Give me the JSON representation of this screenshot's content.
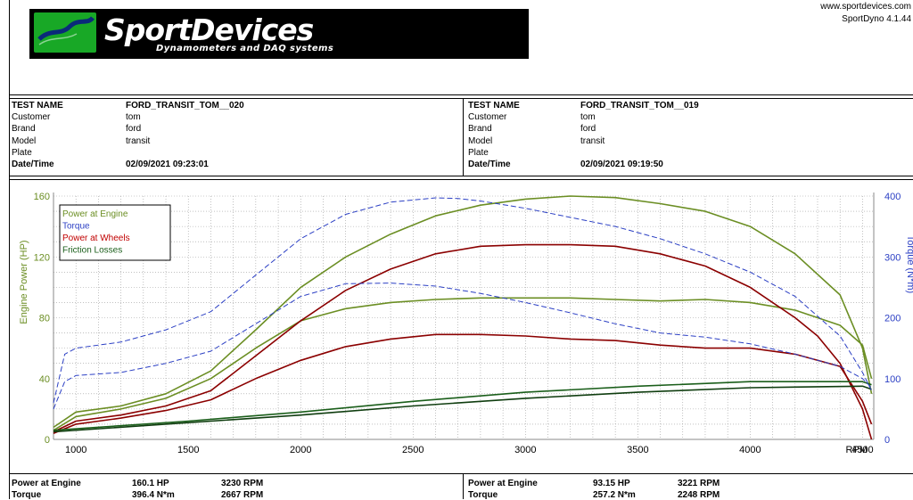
{
  "header": {
    "logo_title": "SportDevices",
    "logo_subtitle": "Dynamometers and DAQ systems",
    "website": "www.sportdevices.com",
    "version": "SportDyno 4.1.44"
  },
  "tests": [
    {
      "test_name_label": "TEST NAME",
      "test_name": "FORD_TRANSIT_TOM__020",
      "customer_label": "Customer",
      "customer": "tom",
      "brand_label": "Brand",
      "brand": "ford",
      "model_label": "Model",
      "model": "transit",
      "plate_label": "Plate",
      "plate": "",
      "datetime_label": "Date/Time",
      "datetime": "02/09/2021 09:23:01"
    },
    {
      "test_name_label": "TEST NAME",
      "test_name": "FORD_TRANSIT_TOM__019",
      "customer_label": "Customer",
      "customer": "tom",
      "brand_label": "Brand",
      "brand": "ford",
      "model_label": "Model",
      "model": "transit",
      "plate_label": "Plate",
      "plate": "",
      "datetime_label": "Date/Time",
      "datetime": "02/09/2021 09:19:50"
    }
  ],
  "results": [
    {
      "power_label": "Power at Engine",
      "power": "160.1 HP",
      "power_rpm": "3230 RPM",
      "torque_label": "Torque",
      "torque": "396.4 N*m",
      "torque_rpm": "2667 RPM"
    },
    {
      "power_label": "Power at Engine",
      "power": "93.15 HP",
      "power_rpm": "3221 RPM",
      "torque_label": "Torque",
      "torque": "257.2 N*m",
      "torque_rpm": "2248 RPM"
    }
  ],
  "chart_data": {
    "type": "line",
    "xlabel": "RPM",
    "ylabel_left": "Engine Power (HP)",
    "ylabel_right": "Torque (N*m)",
    "xlim": [
      900,
      4550
    ],
    "ylim_left": [
      0,
      160
    ],
    "ylim_right": [
      0,
      400
    ],
    "x_ticks": [
      "1000",
      "1500",
      "2000",
      "2500",
      "3000",
      "3500",
      "4000",
      "4500"
    ],
    "y_left_ticks": [
      "0",
      "40",
      "80",
      "120",
      "160"
    ],
    "y_right_ticks": [
      "0",
      "100",
      "200",
      "300",
      "400"
    ],
    "grid": true,
    "legend": {
      "placement": "top-left",
      "entries": [
        {
          "name": "Power at Engine",
          "color": "#6b8e23"
        },
        {
          "name": "Torque",
          "color": "#2b3fc4"
        },
        {
          "name": "Power at Wheels",
          "color": "#c00000"
        },
        {
          "name": "Friction Losses",
          "color": "#1a5e1a"
        }
      ]
    },
    "series": [
      {
        "name": "Power at Engine",
        "test": "FORD_TRANSIT_TOM__020",
        "axis": "left",
        "color": "#6b8e23",
        "style": "solid",
        "x": [
          900,
          1000,
          1200,
          1400,
          1600,
          1800,
          2000,
          2200,
          2400,
          2600,
          2800,
          3000,
          3200,
          3400,
          3600,
          3800,
          4000,
          4200,
          4400,
          4500,
          4540
        ],
        "y": [
          8,
          18,
          22,
          30,
          45,
          72,
          100,
          120,
          135,
          147,
          154,
          158,
          160,
          159,
          155,
          150,
          140,
          122,
          95,
          60,
          30
        ]
      },
      {
        "name": "Power at Engine",
        "test": "FORD_TRANSIT_TOM__019",
        "axis": "left",
        "color": "#6b8e23",
        "style": "solid",
        "x": [
          900,
          1000,
          1200,
          1400,
          1600,
          1800,
          2000,
          2200,
          2400,
          2600,
          2800,
          3000,
          3200,
          3400,
          3600,
          3800,
          4000,
          4200,
          4400,
          4500,
          4540
        ],
        "y": [
          6,
          15,
          20,
          27,
          40,
          60,
          78,
          86,
          90,
          92,
          93,
          93,
          93,
          92,
          91,
          92,
          90,
          85,
          75,
          62,
          40
        ]
      },
      {
        "name": "Power at Wheels",
        "test": "FORD_TRANSIT_TOM__020",
        "axis": "left",
        "color": "#8b0000",
        "style": "solid",
        "x": [
          900,
          1000,
          1200,
          1400,
          1600,
          1800,
          2000,
          2200,
          2400,
          2600,
          2800,
          3000,
          3200,
          3400,
          3600,
          3800,
          4000,
          4200,
          4300,
          4400,
          4500,
          4540
        ],
        "y": [
          5,
          12,
          16,
          22,
          32,
          55,
          78,
          98,
          112,
          122,
          127,
          128,
          128,
          127,
          122,
          114,
          100,
          80,
          68,
          50,
          20,
          0
        ]
      },
      {
        "name": "Power at Wheels",
        "test": "FORD_TRANSIT_TOM__019",
        "axis": "left",
        "color": "#8b0000",
        "style": "solid",
        "x": [
          900,
          1000,
          1200,
          1400,
          1600,
          1800,
          2000,
          2200,
          2400,
          2600,
          2800,
          3000,
          3200,
          3400,
          3600,
          3800,
          4000,
          4200,
          4400,
          4500,
          4540
        ],
        "y": [
          4,
          10,
          14,
          19,
          26,
          40,
          52,
          61,
          66,
          69,
          69,
          68,
          66,
          65,
          62,
          60,
          60,
          56,
          48,
          25,
          10
        ]
      },
      {
        "name": "Friction Losses",
        "test": "FORD_TRANSIT_TOM__020",
        "axis": "left",
        "color": "#1a5e1a",
        "style": "solid",
        "x": [
          900,
          1500,
          2000,
          2500,
          3000,
          3500,
          4000,
          4500,
          4540
        ],
        "y": [
          6,
          12,
          18,
          25,
          31,
          35,
          38,
          38,
          36
        ]
      },
      {
        "name": "Friction Losses",
        "test": "FORD_TRANSIT_TOM__019",
        "axis": "left",
        "color": "#0f3d0f",
        "style": "solid",
        "x": [
          900,
          1500,
          2000,
          2500,
          3000,
          3500,
          4000,
          4500,
          4540
        ],
        "y": [
          5,
          11,
          16,
          22,
          27,
          31,
          34,
          35,
          33
        ]
      },
      {
        "name": "Torque",
        "test": "FORD_TRANSIT_TOM__020",
        "axis": "right",
        "color": "#2b3fc4",
        "style": "dashed",
        "x": [
          900,
          950,
          1000,
          1200,
          1400,
          1600,
          1800,
          2000,
          2200,
          2400,
          2600,
          2700,
          2800,
          3000,
          3200,
          3400,
          3600,
          3800,
          4000,
          4200,
          4400,
          4500,
          4540
        ],
        "y": [
          60,
          140,
          150,
          160,
          180,
          210,
          270,
          330,
          370,
          390,
          397,
          396,
          392,
          380,
          365,
          350,
          330,
          305,
          275,
          235,
          170,
          110,
          80
        ]
      },
      {
        "name": "Torque",
        "test": "FORD_TRANSIT_TOM__019",
        "axis": "right",
        "color": "#2b3fc4",
        "style": "dashed",
        "x": [
          900,
          950,
          1000,
          1200,
          1400,
          1600,
          1800,
          2000,
          2200,
          2400,
          2600,
          2800,
          3000,
          3200,
          3400,
          3600,
          3800,
          4000,
          4200,
          4400,
          4500,
          4540
        ],
        "y": [
          50,
          95,
          105,
          110,
          125,
          145,
          190,
          235,
          256,
          257,
          252,
          240,
          225,
          208,
          190,
          175,
          168,
          157,
          140,
          120,
          100,
          85
        ]
      }
    ]
  }
}
